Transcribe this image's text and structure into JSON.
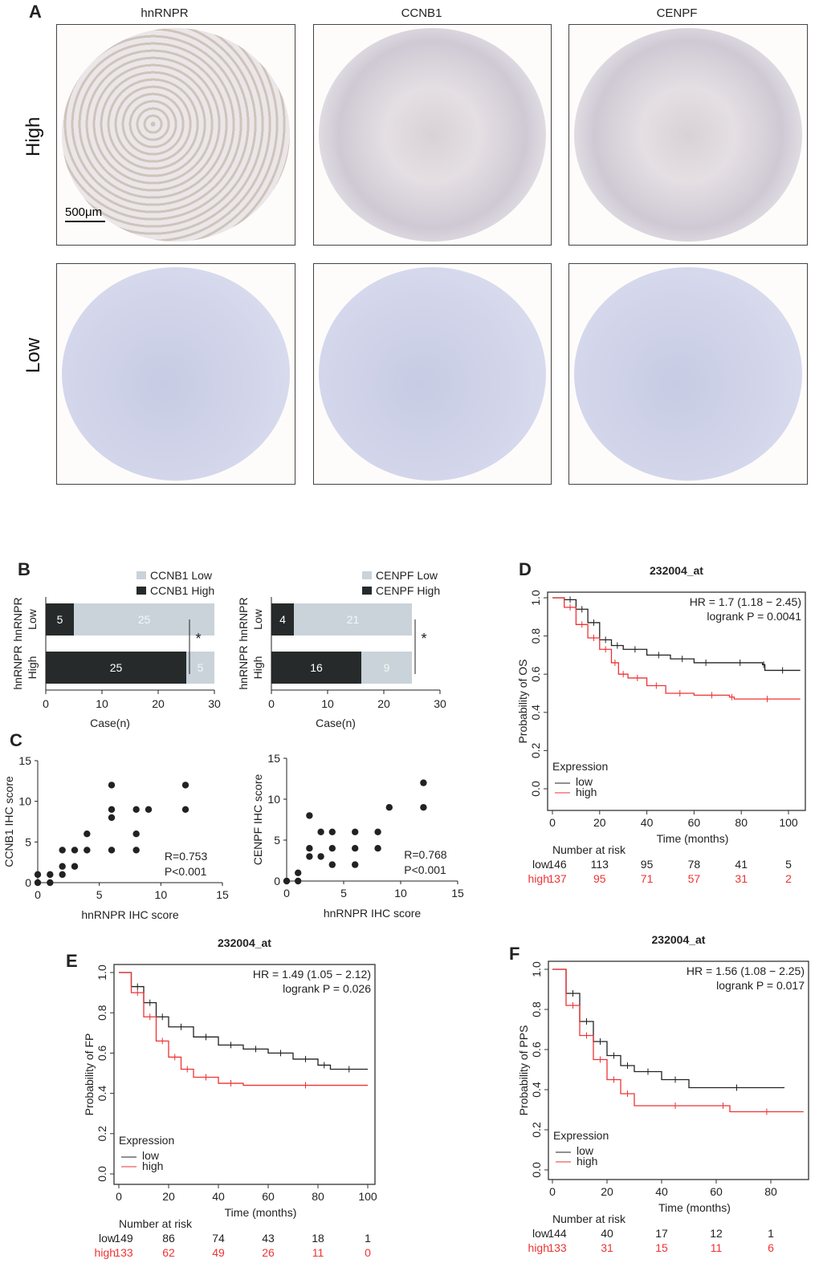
{
  "panel_labels": {
    "a": "A",
    "b": "B",
    "c": "C",
    "d": "D",
    "e": "E",
    "f": "F"
  },
  "ihc": {
    "columns": [
      "hnRNPR",
      "CCNB1",
      "CENPF"
    ],
    "rows": [
      "High",
      "Low"
    ],
    "scale_bar": "500μm"
  },
  "colors": {
    "low": "#222222",
    "high": "#ee3333",
    "bar_low": "#c9d3d9",
    "bar_high": "#262a2a"
  },
  "chart_data": [
    {
      "id": "B1",
      "type": "bar",
      "orientation": "horizontal",
      "stacked": true,
      "categories": [
        "Low",
        "High"
      ],
      "group_label": "hnRNPR",
      "series": [
        {
          "name": "CCNB1 High",
          "values": [
            5,
            25
          ]
        },
        {
          "name": "CCNB1 Low",
          "values": [
            25,
            5
          ]
        }
      ],
      "xlabel": "Case(n)",
      "xlim": [
        0,
        30
      ],
      "xticks": [
        "0",
        "10",
        "20",
        "30"
      ],
      "significance": "*",
      "legend": "top-right"
    },
    {
      "id": "B2",
      "type": "bar",
      "orientation": "horizontal",
      "stacked": true,
      "categories": [
        "Low",
        "High"
      ],
      "group_label": "hnRNPR",
      "series": [
        {
          "name": "CENPF High",
          "values": [
            4,
            16
          ]
        },
        {
          "name": "CENPF Low",
          "values": [
            21,
            9
          ]
        }
      ],
      "xlabel": "Case(n)",
      "xlim": [
        0,
        30
      ],
      "xticks": [
        "0",
        "10",
        "20",
        "30"
      ],
      "significance": "*",
      "legend": "top-right"
    },
    {
      "id": "C1",
      "type": "scatter",
      "xlabel": "hnRNPR IHC score",
      "ylabel": "CCNB1 IHC score",
      "xlim": [
        0,
        15
      ],
      "ylim": [
        0,
        15
      ],
      "xticks": [
        "0",
        "5",
        "10",
        "15"
      ],
      "yticks": [
        "0",
        "5",
        "10",
        "15"
      ],
      "annotation": [
        "R=0.753",
        "P<0.001"
      ],
      "points": [
        [
          0,
          0
        ],
        [
          0,
          1
        ],
        [
          1,
          0
        ],
        [
          1,
          1
        ],
        [
          2,
          1
        ],
        [
          2,
          2
        ],
        [
          2,
          4
        ],
        [
          3,
          2
        ],
        [
          3,
          4
        ],
        [
          4,
          4
        ],
        [
          4,
          6
        ],
        [
          6,
          4
        ],
        [
          6,
          8
        ],
        [
          6,
          9
        ],
        [
          6,
          12
        ],
        [
          8,
          4
        ],
        [
          8,
          6
        ],
        [
          8,
          9
        ],
        [
          9,
          9
        ],
        [
          12,
          9
        ],
        [
          12,
          12
        ]
      ]
    },
    {
      "id": "C2",
      "type": "scatter",
      "xlabel": "hnRNPR IHC score",
      "ylabel": "CENPF IHC score",
      "xlim": [
        0,
        15
      ],
      "ylim": [
        0,
        15
      ],
      "xticks": [
        "0",
        "5",
        "10",
        "15"
      ],
      "yticks": [
        "0",
        "5",
        "10",
        "15"
      ],
      "annotation": [
        "R=0.768",
        "P<0.001"
      ],
      "points": [
        [
          0,
          0
        ],
        [
          1,
          0
        ],
        [
          1,
          1
        ],
        [
          2,
          3
        ],
        [
          2,
          4
        ],
        [
          2,
          8
        ],
        [
          3,
          3
        ],
        [
          3,
          6
        ],
        [
          4,
          2
        ],
        [
          4,
          4
        ],
        [
          4,
          6
        ],
        [
          6,
          2
        ],
        [
          6,
          4
        ],
        [
          6,
          6
        ],
        [
          8,
          4
        ],
        [
          8,
          6
        ],
        [
          9,
          9
        ],
        [
          12,
          9
        ],
        [
          12,
          12
        ]
      ]
    },
    {
      "id": "D",
      "type": "line",
      "title": "232004_at",
      "ylabel": "Probability of OS",
      "xlabel": "Time (months)",
      "xlim": [
        0,
        105
      ],
      "ylim": [
        0,
        1
      ],
      "xticks": [
        "0",
        "20",
        "40",
        "60",
        "80",
        "100"
      ],
      "yticks": [
        "0.0",
        "0.2",
        "0.4",
        "0.6",
        "0.8",
        "1.0"
      ],
      "hr": "HR = 1.7 (1.18 − 2.45)",
      "logrank": "logrank P = 0.0041",
      "legend_title": "Expression",
      "legend": [
        "low",
        "high"
      ],
      "risk_title": "Number at risk",
      "risk_low_label": "low",
      "risk_high_label": "high",
      "risk_low": [
        "146",
        "113",
        "95",
        "78",
        "41",
        "5"
      ],
      "risk_high": [
        "137",
        "95",
        "71",
        "57",
        "31",
        "2"
      ],
      "series": [
        {
          "name": "low",
          "x": [
            0,
            5,
            10,
            15,
            20,
            25,
            30,
            40,
            50,
            60,
            70,
            89,
            90,
            105
          ],
          "y": [
            1,
            0.99,
            0.94,
            0.87,
            0.78,
            0.75,
            0.73,
            0.7,
            0.68,
            0.66,
            0.66,
            0.65,
            0.62,
            0.62
          ]
        },
        {
          "name": "high",
          "x": [
            0,
            5,
            10,
            15,
            20,
            25,
            28,
            32,
            40,
            48,
            60,
            75,
            77,
            105
          ],
          "y": [
            1,
            0.95,
            0.86,
            0.79,
            0.73,
            0.66,
            0.6,
            0.58,
            0.54,
            0.5,
            0.49,
            0.48,
            0.47,
            0.47
          ]
        }
      ]
    },
    {
      "id": "E",
      "type": "line",
      "title": "232004_at",
      "ylabel": "Probability of FP",
      "xlabel": "Time (months)",
      "xlim": [
        0,
        100
      ],
      "ylim": [
        0,
        1
      ],
      "xticks": [
        "0",
        "20",
        "40",
        "60",
        "80",
        "100"
      ],
      "yticks": [
        "0.0",
        "0.2",
        "0.4",
        "0.6",
        "0.8",
        "1.0"
      ],
      "hr": "HR = 1.49 (1.05 − 2.12)",
      "logrank": "logrank P = 0.026",
      "legend_title": "Expression",
      "legend": [
        "low",
        "high"
      ],
      "risk_title": "Number at risk",
      "risk_low_label": "low",
      "risk_high_label": "high",
      "risk_low": [
        "149",
        "86",
        "74",
        "43",
        "18",
        "1"
      ],
      "risk_high": [
        "133",
        "62",
        "49",
        "26",
        "11",
        "0"
      ],
      "series": [
        {
          "name": "low",
          "x": [
            0,
            5,
            10,
            15,
            20,
            30,
            40,
            50,
            60,
            70,
            80,
            85,
            100
          ],
          "y": [
            1,
            0.93,
            0.85,
            0.78,
            0.73,
            0.68,
            0.64,
            0.62,
            0.6,
            0.57,
            0.54,
            0.52,
            0.52
          ]
        },
        {
          "name": "high",
          "x": [
            0,
            5,
            10,
            15,
            20,
            25,
            30,
            40,
            50,
            100
          ],
          "y": [
            1,
            0.9,
            0.78,
            0.66,
            0.58,
            0.52,
            0.48,
            0.45,
            0.44,
            0.44
          ]
        }
      ]
    },
    {
      "id": "F",
      "type": "line",
      "title": "232004_at",
      "ylabel": "Probability of PPS",
      "xlabel": "Time (months)",
      "xlim": [
        0,
        92
      ],
      "ylim": [
        0,
        1
      ],
      "xticks": [
        "0",
        "20",
        "40",
        "60",
        "80"
      ],
      "yticks": [
        "0.0",
        "0.2",
        "0.4",
        "0.6",
        "0.8",
        "1.0"
      ],
      "hr": "HR = 1.56 (1.08 − 2.25)",
      "logrank": "logrank P = 0.017",
      "legend_title": "Expression",
      "legend": [
        "low",
        "high"
      ],
      "risk_title": "Number at risk",
      "risk_low_label": "low",
      "risk_high_label": "high",
      "risk_low": [
        "144",
        "40",
        "17",
        "12",
        "1"
      ],
      "risk_high": [
        "133",
        "31",
        "15",
        "11",
        "6"
      ],
      "series": [
        {
          "name": "low",
          "x": [
            0,
            5,
            10,
            15,
            20,
            25,
            30,
            40,
            50,
            85
          ],
          "y": [
            1,
            0.88,
            0.74,
            0.64,
            0.57,
            0.52,
            0.49,
            0.45,
            0.41,
            0.41
          ]
        },
        {
          "name": "high",
          "x": [
            0,
            5,
            10,
            15,
            20,
            25,
            30,
            60,
            65,
            92
          ],
          "y": [
            1,
            0.82,
            0.67,
            0.55,
            0.45,
            0.38,
            0.32,
            0.32,
            0.29,
            0.29
          ]
        }
      ]
    }
  ]
}
